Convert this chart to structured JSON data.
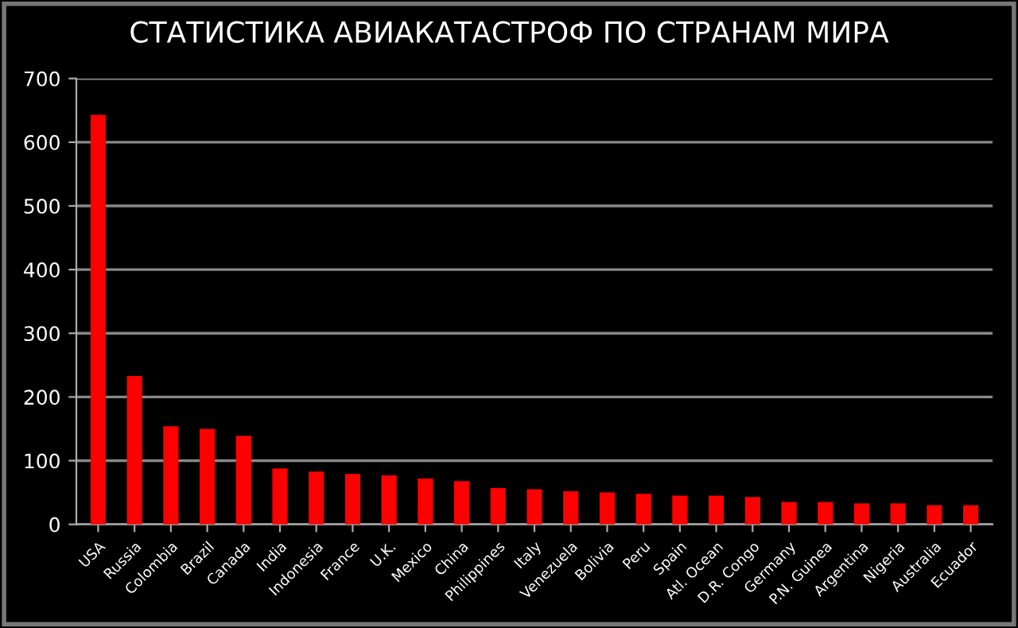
{
  "chart_data": {
    "type": "bar",
    "title": "СТАТИСТИКА АВИАКАТАСТРОФ ПО СТРАНАМ МИРА",
    "categories": [
      "USA",
      "Russia",
      "Colombia",
      "Brazil",
      "Canada",
      "India",
      "Indonesia",
      "France",
      "U.K.",
      "Mexico",
      "China",
      "Philippines",
      "Italy",
      "Venezuela",
      "Bolivia",
      "Peru",
      "Spain",
      "Atl. Ocean",
      "D.R. Congo",
      "Germany",
      "P.N. Guinea",
      "Argentina",
      "Nigeria",
      "Australia",
      "Ecuador"
    ],
    "values": [
      643,
      233,
      154,
      150,
      139,
      88,
      83,
      79,
      77,
      72,
      68,
      57,
      55,
      52,
      50,
      48,
      45,
      45,
      43,
      35,
      35,
      33,
      33,
      30,
      30
    ],
    "color": "#ff0000",
    "ylim": [
      0,
      700
    ],
    "yticks": [
      0,
      100,
      200,
      300,
      400,
      500,
      600,
      700
    ],
    "grid": "y"
  }
}
